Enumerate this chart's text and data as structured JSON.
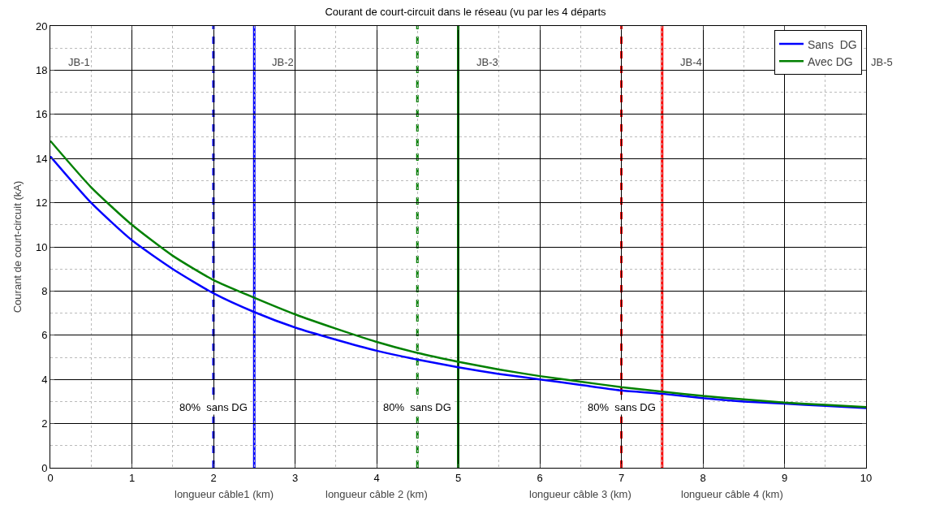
{
  "chart_data": {
    "type": "line",
    "title": "Courant de court-circuit dans le réseau (vu par les 4 départs",
    "ylabel": "Courant de court-circuit (kA)",
    "x": [
      0,
      0.5,
      1,
      1.5,
      2,
      2.5,
      3,
      3.5,
      4,
      4.5,
      5,
      5.5,
      6,
      6.5,
      7,
      7.5,
      8,
      8.5,
      9,
      9.5,
      10
    ],
    "series": [
      {
        "name": "Sans  DG",
        "color": "#0000ff",
        "values": [
          14.1,
          12.0,
          10.3,
          9.0,
          7.9,
          7.05,
          6.35,
          5.8,
          5.3,
          4.9,
          4.55,
          4.25,
          4.0,
          3.75,
          3.5,
          3.35,
          3.15,
          3.0,
          2.9,
          2.8,
          2.7
        ]
      },
      {
        "name": "Avec DG",
        "color": "#008000",
        "values": [
          14.8,
          12.7,
          11.0,
          9.6,
          8.5,
          7.7,
          6.95,
          6.3,
          5.7,
          5.2,
          4.8,
          4.45,
          4.15,
          3.9,
          3.65,
          3.45,
          3.25,
          3.1,
          2.95,
          2.85,
          2.75
        ]
      }
    ],
    "xlim": [
      0,
      10
    ],
    "xticks": [
      0,
      1,
      2,
      3,
      4,
      5,
      6,
      7,
      8,
      9,
      10
    ],
    "ylim": [
      0,
      20
    ],
    "yticks": [
      0,
      2,
      4,
      6,
      8,
      10,
      12,
      14,
      16,
      18,
      20
    ],
    "ref_lines": [
      {
        "axis": "x",
        "value": 2,
        "label": "80%  sans DG",
        "color": "#0000ff",
        "line_style": "dashed"
      },
      {
        "axis": "x",
        "value": 2.5,
        "color": "#0000ff",
        "line_style": "solid"
      },
      {
        "axis": "x",
        "value": 4.5,
        "label": "80%  sans DG",
        "color": "#008000",
        "line_style": "dashed"
      },
      {
        "axis": "x",
        "value": 5,
        "color": "#008000",
        "line_style": "solid"
      },
      {
        "axis": "x",
        "value": 7,
        "label": "80%  sans DG",
        "color": "#ff0000",
        "line_style": "dashed"
      },
      {
        "axis": "x",
        "value": 7.5,
        "color": "#ff0000",
        "line_style": "solid"
      }
    ],
    "annotations": [
      "JB-1",
      "JB-2",
      "JB-3",
      "JB-4",
      "JB-5",
      "longueur câble1 (km)",
      "longueur câble 2 (km)",
      "longueur câble 3 (km)",
      "longueur câble 4 (km)"
    ],
    "grid": true,
    "legend": "top right",
    "marker": "none",
    "line_style": "solid"
  }
}
